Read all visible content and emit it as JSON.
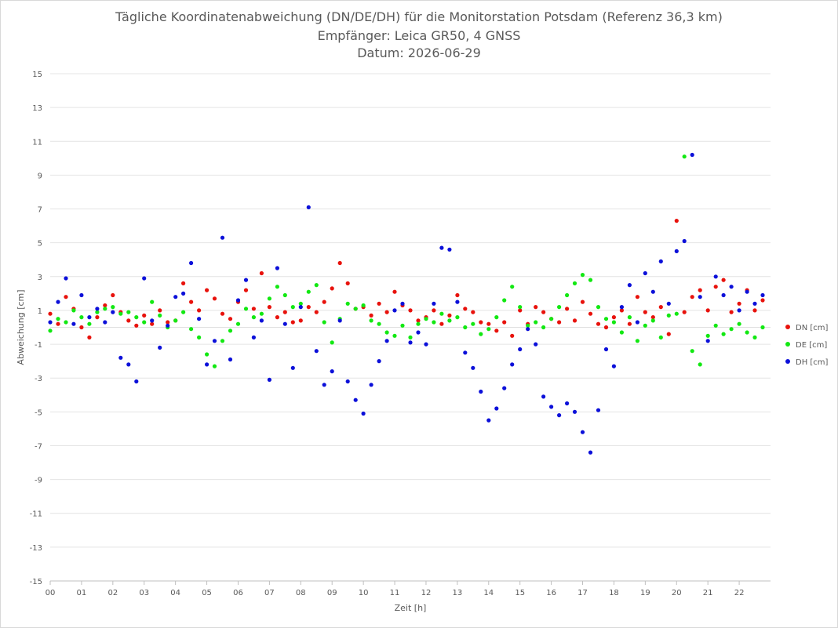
{
  "chart_data": {
    "type": "scatter",
    "title": "Tägliche Koordinatenabweichung (DN/DE/DH) für die Monitorstation Potsdam (Referenz 36,3 km)",
    "subtitle": "Empfänger: Leica GR50, 4 GNSS",
    "date_line": "Datum: 2026-06-29",
    "xlabel": "Zeit [h]",
    "ylabel": "Abweichung [cm]",
    "xlim": [
      0,
      23
    ],
    "ylim": [
      -15,
      15
    ],
    "x_tick_labels": [
      "00",
      "01",
      "02",
      "03",
      "04",
      "05",
      "06",
      "07",
      "08",
      "09",
      "10",
      "11",
      "12",
      "13",
      "14",
      "15",
      "16",
      "17",
      "18",
      "19",
      "20",
      "21",
      "22"
    ],
    "y_ticks": [
      15,
      13,
      11,
      9,
      7,
      5,
      3,
      1,
      -1,
      -3,
      -5,
      -7,
      -9,
      -11,
      -13,
      -15
    ],
    "grid": "horizontal-major",
    "legend_position": "right",
    "series": [
      {
        "name": "DN [cm]",
        "color": "#e8120c",
        "x": [
          0.0,
          0.25,
          0.5,
          0.75,
          1.0,
          1.25,
          1.5,
          1.75,
          2.0,
          2.25,
          2.5,
          2.75,
          3.0,
          3.25,
          3.5,
          3.75,
          4.0,
          4.25,
          4.5,
          4.75,
          5.0,
          5.25,
          5.5,
          5.75,
          6.0,
          6.25,
          6.5,
          6.75,
          7.0,
          7.25,
          7.5,
          7.75,
          8.0,
          8.25,
          8.5,
          8.75,
          9.0,
          9.25,
          9.5,
          9.75,
          10.0,
          10.25,
          10.5,
          10.75,
          11.0,
          11.25,
          11.5,
          11.75,
          12.0,
          12.25,
          12.5,
          12.75,
          13.0,
          13.25,
          13.5,
          13.75,
          14.0,
          14.25,
          14.5,
          14.75,
          15.0,
          15.25,
          15.5,
          15.75,
          16.0,
          16.25,
          16.5,
          16.75,
          17.0,
          17.25,
          17.5,
          17.75,
          18.0,
          18.25,
          18.5,
          18.75,
          19.0,
          19.25,
          19.5,
          19.75,
          20.0,
          20.25,
          20.5,
          20.75,
          21.0,
          21.25,
          21.5,
          21.75,
          22.0,
          22.25,
          22.5,
          22.75
        ],
        "y": [
          0.8,
          0.2,
          1.8,
          1.1,
          0.0,
          -0.6,
          0.6,
          1.3,
          1.9,
          0.9,
          0.4,
          0.1,
          0.7,
          0.2,
          1.0,
          0.3,
          0.4,
          2.6,
          1.5,
          1.0,
          2.2,
          1.7,
          0.8,
          0.5,
          1.5,
          2.2,
          1.1,
          3.2,
          1.2,
          0.6,
          0.9,
          0.3,
          0.4,
          1.2,
          0.9,
          1.5,
          2.3,
          3.8,
          2.6,
          1.1,
          1.2,
          0.7,
          1.4,
          0.9,
          2.1,
          1.3,
          1.0,
          0.4,
          0.6,
          1.0,
          0.2,
          0.7,
          1.9,
          1.1,
          0.9,
          0.3,
          0.2,
          -0.2,
          0.3,
          -0.5,
          1.0,
          0.2,
          1.2,
          0.9,
          0.5,
          0.3,
          1.1,
          0.4,
          1.5,
          0.8,
          0.2,
          0.0,
          0.6,
          1.0,
          0.2,
          1.8,
          0.9,
          0.6,
          1.2,
          -0.4,
          6.3,
          0.9,
          1.8,
          2.2,
          1.0,
          2.4,
          2.8,
          0.9,
          1.4,
          2.2,
          1.0,
          1.6
        ]
      },
      {
        "name": "DE [cm]",
        "color": "#12e812",
        "x": [
          0.0,
          0.25,
          0.5,
          0.75,
          1.0,
          1.25,
          1.5,
          1.75,
          2.0,
          2.25,
          2.5,
          2.75,
          3.0,
          3.25,
          3.5,
          3.75,
          4.0,
          4.25,
          4.5,
          4.75,
          5.0,
          5.25,
          5.5,
          5.75,
          6.0,
          6.25,
          6.5,
          6.75,
          7.0,
          7.25,
          7.5,
          7.75,
          8.0,
          8.25,
          8.5,
          8.75,
          9.0,
          9.25,
          9.5,
          9.75,
          10.0,
          10.25,
          10.5,
          10.75,
          11.0,
          11.25,
          11.5,
          11.75,
          12.0,
          12.25,
          12.5,
          12.75,
          13.0,
          13.25,
          13.5,
          13.75,
          14.0,
          14.25,
          14.5,
          14.75,
          15.0,
          15.25,
          15.5,
          15.75,
          16.0,
          16.25,
          16.5,
          16.75,
          17.0,
          17.25,
          17.5,
          17.75,
          18.0,
          18.25,
          18.5,
          18.75,
          19.0,
          19.25,
          19.5,
          19.75,
          20.0,
          20.25,
          20.5,
          20.75,
          21.0,
          21.25,
          21.5,
          21.75,
          22.0,
          22.25,
          22.5,
          22.75
        ],
        "y": [
          -0.2,
          0.5,
          0.3,
          1.0,
          0.6,
          0.2,
          0.9,
          1.1,
          1.2,
          0.8,
          0.9,
          0.6,
          0.3,
          1.5,
          0.7,
          0.0,
          0.4,
          0.9,
          -0.1,
          -0.6,
          -1.6,
          -2.3,
          -0.8,
          -0.2,
          0.2,
          1.1,
          0.6,
          0.8,
          1.7,
          2.4,
          1.9,
          1.2,
          1.4,
          2.1,
          2.5,
          0.3,
          -0.9,
          0.5,
          1.4,
          1.1,
          1.3,
          0.4,
          0.2,
          -0.3,
          -0.5,
          0.1,
          -0.6,
          0.2,
          0.5,
          0.3,
          0.8,
          0.4,
          0.6,
          0.0,
          0.2,
          -0.4,
          -0.1,
          0.6,
          1.6,
          2.4,
          1.2,
          0.1,
          0.3,
          0.0,
          0.5,
          1.2,
          1.9,
          2.6,
          3.1,
          2.8,
          1.2,
          0.5,
          0.3,
          -0.3,
          0.6,
          -0.8,
          0.1,
          0.4,
          -0.6,
          0.7,
          0.8,
          10.1,
          -1.4,
          -2.2,
          -0.5,
          0.1,
          -0.4,
          -0.1,
          0.2,
          -0.3,
          -0.6,
          0.0
        ]
      },
      {
        "name": "DH [cm]",
        "color": "#0c10d9",
        "x": [
          0.0,
          0.25,
          0.5,
          0.75,
          1.0,
          1.25,
          1.5,
          1.75,
          2.0,
          2.25,
          2.5,
          2.75,
          3.0,
          3.25,
          3.5,
          3.75,
          4.0,
          4.25,
          4.5,
          4.75,
          5.0,
          5.25,
          5.5,
          5.75,
          6.0,
          6.25,
          6.5,
          6.75,
          7.0,
          7.25,
          7.5,
          7.75,
          8.0,
          8.25,
          8.5,
          8.75,
          9.0,
          9.25,
          9.5,
          9.75,
          10.0,
          10.25,
          10.5,
          10.75,
          11.0,
          11.25,
          11.5,
          11.75,
          12.0,
          12.25,
          12.5,
          12.75,
          13.0,
          13.25,
          13.5,
          13.75,
          14.0,
          14.25,
          14.5,
          14.75,
          15.0,
          15.25,
          15.5,
          15.75,
          16.0,
          16.25,
          16.5,
          16.75,
          17.0,
          17.25,
          17.5,
          17.75,
          18.0,
          18.25,
          18.5,
          18.75,
          19.0,
          19.25,
          19.5,
          19.75,
          20.0,
          20.25,
          20.5,
          20.75,
          21.0,
          21.25,
          21.5,
          21.75,
          22.0,
          22.25,
          22.5,
          22.75
        ],
        "y": [
          0.3,
          1.5,
          2.9,
          0.2,
          1.9,
          0.6,
          1.1,
          0.3,
          0.9,
          -1.8,
          -2.2,
          -3.2,
          2.9,
          0.4,
          -1.2,
          0.1,
          1.8,
          2.0,
          3.8,
          0.5,
          -2.2,
          -0.8,
          5.3,
          -1.9,
          1.6,
          2.8,
          -0.6,
          0.4,
          -3.1,
          3.5,
          0.2,
          -2.4,
          1.2,
          7.1,
          -1.4,
          -3.4,
          -2.6,
          0.4,
          -3.2,
          -4.3,
          -5.1,
          -3.4,
          -2.0,
          -0.8,
          1.0,
          1.4,
          -0.9,
          -0.3,
          -1.0,
          1.4,
          4.7,
          4.6,
          1.5,
          -1.5,
          -2.4,
          -3.8,
          -5.5,
          -4.8,
          -3.6,
          -2.2,
          -1.3,
          -0.1,
          -1.0,
          -4.1,
          -4.7,
          -5.2,
          -4.5,
          -5.0,
          -6.2,
          -7.4,
          -4.9,
          -1.3,
          -2.3,
          1.2,
          2.5,
          0.3,
          3.2,
          2.1,
          3.9,
          1.4,
          4.5,
          5.1,
          10.2,
          1.8,
          -0.8,
          3.0,
          1.9,
          2.4,
          1.0,
          2.1,
          1.4,
          1.9
        ]
      }
    ]
  }
}
